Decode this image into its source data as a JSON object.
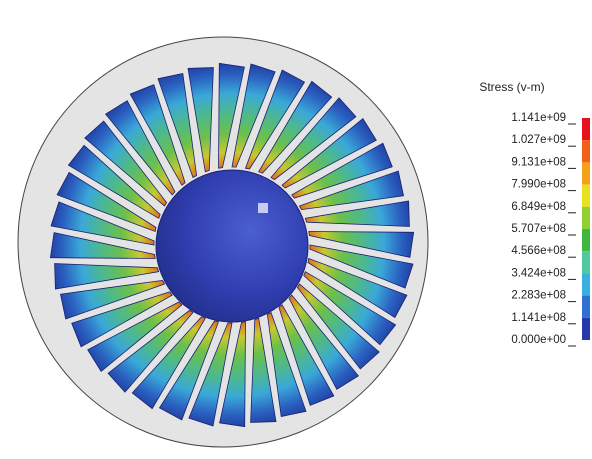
{
  "legend": {
    "title": "Stress (v-m)",
    "labels": [
      "1.141e+09",
      "1.027e+09",
      "9.131e+08",
      "7.990e+08",
      "6.849e+08",
      "5.707e+08",
      "4.566e+08",
      "3.424e+08",
      "2.283e+08",
      "1.141e+08",
      "0.000e+00"
    ]
  }
}
